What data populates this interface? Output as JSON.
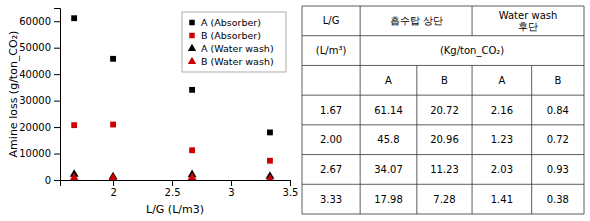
{
  "chart_data": [
    {
      "type": "scatter",
      "xlabel": "L/G (L/m3)",
      "ylabel": "Amine loss (g/ton_CO₂)",
      "x": [
        1.67,
        2.0,
        2.67,
        3.33
      ],
      "series": [
        {
          "name": "A (Absorber)",
          "color": "#000000",
          "marker": "square",
          "values": [
            61140,
            45800,
            34070,
            17980
          ]
        },
        {
          "name": "B (Absorber)",
          "color": "#cc0000",
          "marker": "square",
          "values": [
            20720,
            20960,
            11230,
            7280
          ]
        },
        {
          "name": "A (Water wash)",
          "color": "#000000",
          "marker": "triangle",
          "values": [
            2160,
            1230,
            2030,
            1410
          ]
        },
        {
          "name": "B (Water wash)",
          "color": "#cc0000",
          "marker": "triangle",
          "values": [
            840,
            720,
            930,
            380
          ]
        }
      ],
      "xlim": [
        1.55,
        3.5
      ],
      "xticks": [
        2,
        2.5,
        3,
        3.5
      ],
      "ylim": [
        0,
        65000
      ],
      "yticks": [
        0,
        10000,
        20000,
        30000,
        40000,
        50000,
        60000
      ],
      "legend": "upper right"
    },
    {
      "type": "table",
      "header_lg": "L/G",
      "header_absorber": "흡수탑 상단",
      "header_waterwash": "Water wash\n후단",
      "unit_lg": "(L/m³)",
      "unit_data": "(Kg/ton_CO₂)",
      "subheaders": [
        "A",
        "B",
        "A",
        "B"
      ],
      "rows": [
        [
          "1.67",
          "61.14",
          "20.72",
          "2.16",
          "0.84"
        ],
        [
          "2.00",
          "45.8",
          "20.96",
          "1.23",
          "0.72"
        ],
        [
          "2.67",
          "34.07",
          "11.23",
          "2.03",
          "0.93"
        ],
        [
          "3.33",
          "17.98",
          "7.28",
          "1.41",
          "0.38"
        ]
      ]
    }
  ]
}
